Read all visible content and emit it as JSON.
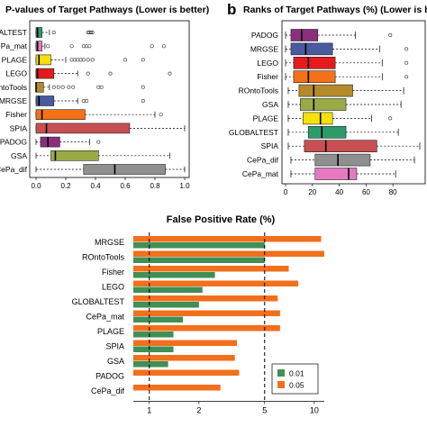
{
  "panel_letter_b": "b",
  "colors": {
    "pathways": {
      "PADOG": "#8b2f7c",
      "MRGSE": "#4a5aa0",
      "LEGO": "#e41a1c",
      "Fisher": "#f47216",
      "ROntoTools": "#b58a2a",
      "GSA": "#9aab46",
      "PLAGE": "#f5e20a",
      "GLOBALTEST": "#2e9a6a",
      "SPIA": "#c84f52",
      "CePa_dif": "#8f8f8f",
      "CePa_mat": "#e57ac0"
    },
    "fpr_001": "#3f8f56",
    "fpr_005": "#f26f1c",
    "grid": "#000000"
  },
  "chart_data": [
    {
      "type": "box",
      "title": "P-values of Target Pathways (Lower is better)",
      "xlim": [
        0,
        1
      ],
      "xticks": [
        "0.0",
        "0.2",
        "0.4",
        "0.6",
        "0.8",
        "1.0"
      ],
      "categories": [
        "GLOBALTEST",
        "CePa_mat",
        "PLAGE",
        "LEGO",
        "ROntoTools",
        "MRGSE",
        "Fisher",
        "SPIA",
        "PADOG",
        "GSA",
        "CePa_dif"
      ],
      "tick_labels": [
        "ALTEST",
        "Pa_mat",
        "PLAGE",
        "LEGO",
        "ROntoTools",
        "MRGSE",
        "Fisher",
        "SPIA",
        "PADOG",
        "GSA",
        "CePa_dif"
      ],
      "boxes": [
        {
          "name": "GLOBALTEST",
          "min": 0.0,
          "q1": 0.0,
          "median": 0.01,
          "q3": 0.04,
          "max": 0.09,
          "outliers": [
            0.12,
            0.35,
            0.36,
            0.37,
            0.38
          ]
        },
        {
          "name": "CePa_mat",
          "min": 0.0,
          "q1": 0.0,
          "median": 0.01,
          "q3": 0.04,
          "max": 0.06,
          "outliers": [
            0.08,
            0.24,
            0.32,
            0.34,
            0.36,
            0.78,
            0.86
          ]
        },
        {
          "name": "PLAGE",
          "min": 0.0,
          "q1": 0.0,
          "median": 0.02,
          "q3": 0.1,
          "max": 0.2,
          "outliers": [
            0.24,
            0.26,
            0.28,
            0.3,
            0.32,
            0.35,
            0.38,
            0.6,
            0.72
          ]
        },
        {
          "name": "LEGO",
          "min": 0.0,
          "q1": 0.0,
          "median": 0.01,
          "q3": 0.12,
          "max": 0.28,
          "outliers": [
            0.35,
            0.5,
            0.9
          ]
        },
        {
          "name": "ROntoTools",
          "min": 0.0,
          "q1": 0.0,
          "median": 0.0,
          "q3": 0.05,
          "max": 0.09,
          "outliers": [
            0.12,
            0.15,
            0.18,
            0.22,
            0.25,
            0.42,
            0.44,
            0.72
          ]
        },
        {
          "name": "MRGSE",
          "min": 0.0,
          "q1": 0.0,
          "median": 0.02,
          "q3": 0.12,
          "max": 0.28,
          "outliers": [
            0.32,
            0.34,
            0.72
          ]
        },
        {
          "name": "Fisher",
          "min": 0.0,
          "q1": 0.0,
          "median": 0.04,
          "q3": 0.33,
          "max": 0.8,
          "outliers": [
            0.84
          ]
        },
        {
          "name": "SPIA",
          "min": 0.0,
          "q1": 0.0,
          "median": 0.07,
          "q3": 0.63,
          "max": 1.0,
          "outliers": []
        },
        {
          "name": "PADOG",
          "min": 0.0,
          "q1": 0.03,
          "median": 0.08,
          "q3": 0.16,
          "max": 0.36,
          "outliers": [
            0.42
          ]
        },
        {
          "name": "GSA",
          "min": 0.0,
          "q1": 0.1,
          "median": 0.13,
          "q3": 0.42,
          "max": 0.9,
          "outliers": []
        },
        {
          "name": "CePa_dif",
          "min": 0.0,
          "q1": 0.32,
          "median": 0.53,
          "q3": 0.87,
          "max": 1.0,
          "outliers": []
        }
      ]
    },
    {
      "type": "box",
      "title": "Ranks of Target Pathways (%) (Lower is better)",
      "xlim": [
        0,
        100
      ],
      "xticks": [
        "0",
        "20",
        "40",
        "60",
        "80"
      ],
      "categories": [
        "PADOG",
        "MRGSE",
        "LEGO",
        "Fisher",
        "ROntoTools",
        "GSA",
        "PLAGE",
        "GLOBALTEST",
        "SPIA",
        "CePa_dif",
        "CePa_mat"
      ],
      "boxes": [
        {
          "name": "PADOG",
          "min": 0,
          "q1": 4,
          "median": 12,
          "q3": 24,
          "max": 52,
          "outliers": [
            78
          ]
        },
        {
          "name": "MRGSE",
          "min": 0,
          "q1": 4,
          "median": 15,
          "q3": 35,
          "max": 70,
          "outliers": [
            90
          ]
        },
        {
          "name": "LEGO",
          "min": 0,
          "q1": 6,
          "median": 17,
          "q3": 37,
          "max": 72,
          "outliers": [
            90
          ]
        },
        {
          "name": "Fisher",
          "min": 0,
          "q1": 6,
          "median": 17,
          "q3": 37,
          "max": 72,
          "outliers": [
            90
          ]
        },
        {
          "name": "ROntoTools",
          "min": 2,
          "q1": 10,
          "median": 21,
          "q3": 50,
          "max": 88,
          "outliers": []
        },
        {
          "name": "GSA",
          "min": 2,
          "q1": 11,
          "median": 21,
          "q3": 45,
          "max": 86,
          "outliers": []
        },
        {
          "name": "PLAGE",
          "min": 2,
          "q1": 13,
          "median": 26,
          "q3": 35,
          "max": 64,
          "outliers": [
            78
          ]
        },
        {
          "name": "GLOBALTEST",
          "min": 2,
          "q1": 17,
          "median": 27,
          "q3": 45,
          "max": 84,
          "outliers": []
        },
        {
          "name": "SPIA",
          "min": 2,
          "q1": 14,
          "median": 30,
          "q3": 68,
          "max": 100,
          "outliers": []
        },
        {
          "name": "CePa_dif",
          "min": 4,
          "q1": 22,
          "median": 39,
          "q3": 63,
          "max": 96,
          "outliers": []
        },
        {
          "name": "CePa_mat",
          "min": 4,
          "q1": 22,
          "median": 47,
          "q3": 53,
          "max": 82,
          "outliers": []
        }
      ]
    },
    {
      "type": "bar",
      "orientation": "horizontal",
      "scale": "log",
      "title": "False Positive Rate (%)",
      "xlim": [
        0.8,
        11.5
      ],
      "xticks": [
        "1",
        "2",
        "5",
        "10"
      ],
      "reference_lines": [
        1,
        5
      ],
      "legend_position": "bottom-right",
      "categories": [
        "MRGSE",
        "ROntoTools",
        "Fisher",
        "LEGO",
        "GLOBALTEST",
        "CePa_mat",
        "PLAGE",
        "SPIA",
        "GSA",
        "PADOG",
        "CePa_dif"
      ],
      "series": [
        {
          "name": "0.01",
          "values": [
            5.0,
            5.0,
            2.5,
            2.1,
            2.0,
            1.6,
            1.4,
            1.4,
            1.3,
            0.8,
            0.8
          ]
        },
        {
          "name": "0.05",
          "values": [
            11.0,
            11.5,
            7.0,
            8.0,
            6.0,
            6.2,
            6.2,
            3.4,
            3.3,
            3.5,
            2.7
          ]
        }
      ]
    }
  ]
}
